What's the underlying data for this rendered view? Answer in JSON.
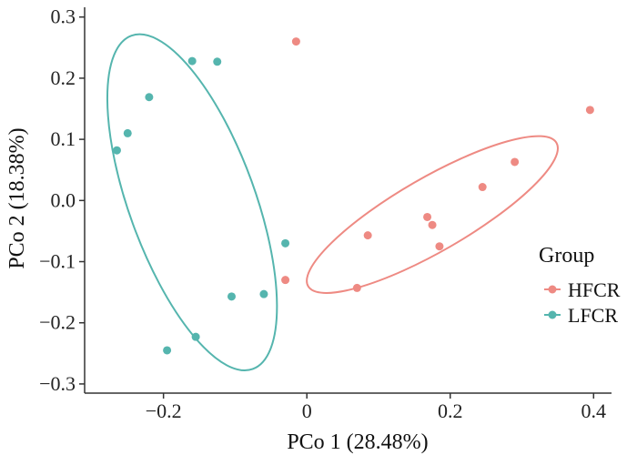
{
  "chart_data": {
    "type": "scatter",
    "title": "",
    "xlabel": "PCo 1 (28.48%)",
    "ylabel": "PCo 2 (18.38%)",
    "xlim": [
      -0.31,
      0.425
    ],
    "ylim": [
      -0.315,
      0.31
    ],
    "xticks": [
      -0.2,
      0.0,
      0.2,
      0.4
    ],
    "xtick_labels": [
      "−0.2",
      "0",
      "0.2",
      "0.4"
    ],
    "yticks": [
      -0.3,
      -0.2,
      -0.1,
      0.0,
      0.1,
      0.2,
      0.3
    ],
    "ytick_labels": [
      "−0.3",
      "−0.2",
      "−0.1",
      "0.0",
      "0.1",
      "0.2",
      "0.3"
    ],
    "grid": false,
    "legend": {
      "title": "Group",
      "position": "right",
      "entries": [
        "HFCR",
        "LFCR"
      ]
    },
    "series": [
      {
        "name": "HFCR",
        "color": "#ee8a83",
        "points": [
          {
            "x": -0.015,
            "y": 0.26
          },
          {
            "x": 0.395,
            "y": 0.148
          },
          {
            "x": 0.29,
            "y": 0.063
          },
          {
            "x": 0.245,
            "y": 0.022
          },
          {
            "x": 0.168,
            "y": -0.027
          },
          {
            "x": 0.175,
            "y": -0.04
          },
          {
            "x": 0.085,
            "y": -0.057
          },
          {
            "x": 0.185,
            "y": -0.075
          },
          {
            "x": -0.03,
            "y": -0.13
          },
          {
            "x": 0.07,
            "y": -0.143
          }
        ],
        "ellipse": {
          "cx": 0.175,
          "cy": -0.023,
          "rx": 0.2,
          "ry": 0.06,
          "angle_deg": 30
        }
      },
      {
        "name": "LFCR",
        "color": "#55b5ae",
        "points": [
          {
            "x": -0.16,
            "y": 0.228
          },
          {
            "x": -0.125,
            "y": 0.227
          },
          {
            "x": -0.22,
            "y": 0.169
          },
          {
            "x": -0.25,
            "y": 0.11
          },
          {
            "x": -0.265,
            "y": 0.082
          },
          {
            "x": -0.03,
            "y": -0.07
          },
          {
            "x": -0.105,
            "y": -0.157
          },
          {
            "x": -0.06,
            "y": -0.153
          },
          {
            "x": -0.155,
            "y": -0.223
          },
          {
            "x": -0.195,
            "y": -0.245
          }
        ],
        "ellipse": {
          "cx": -0.16,
          "cy": -0.003,
          "rx": 0.088,
          "ry": 0.29,
          "angle_deg": 20
        }
      }
    ]
  }
}
